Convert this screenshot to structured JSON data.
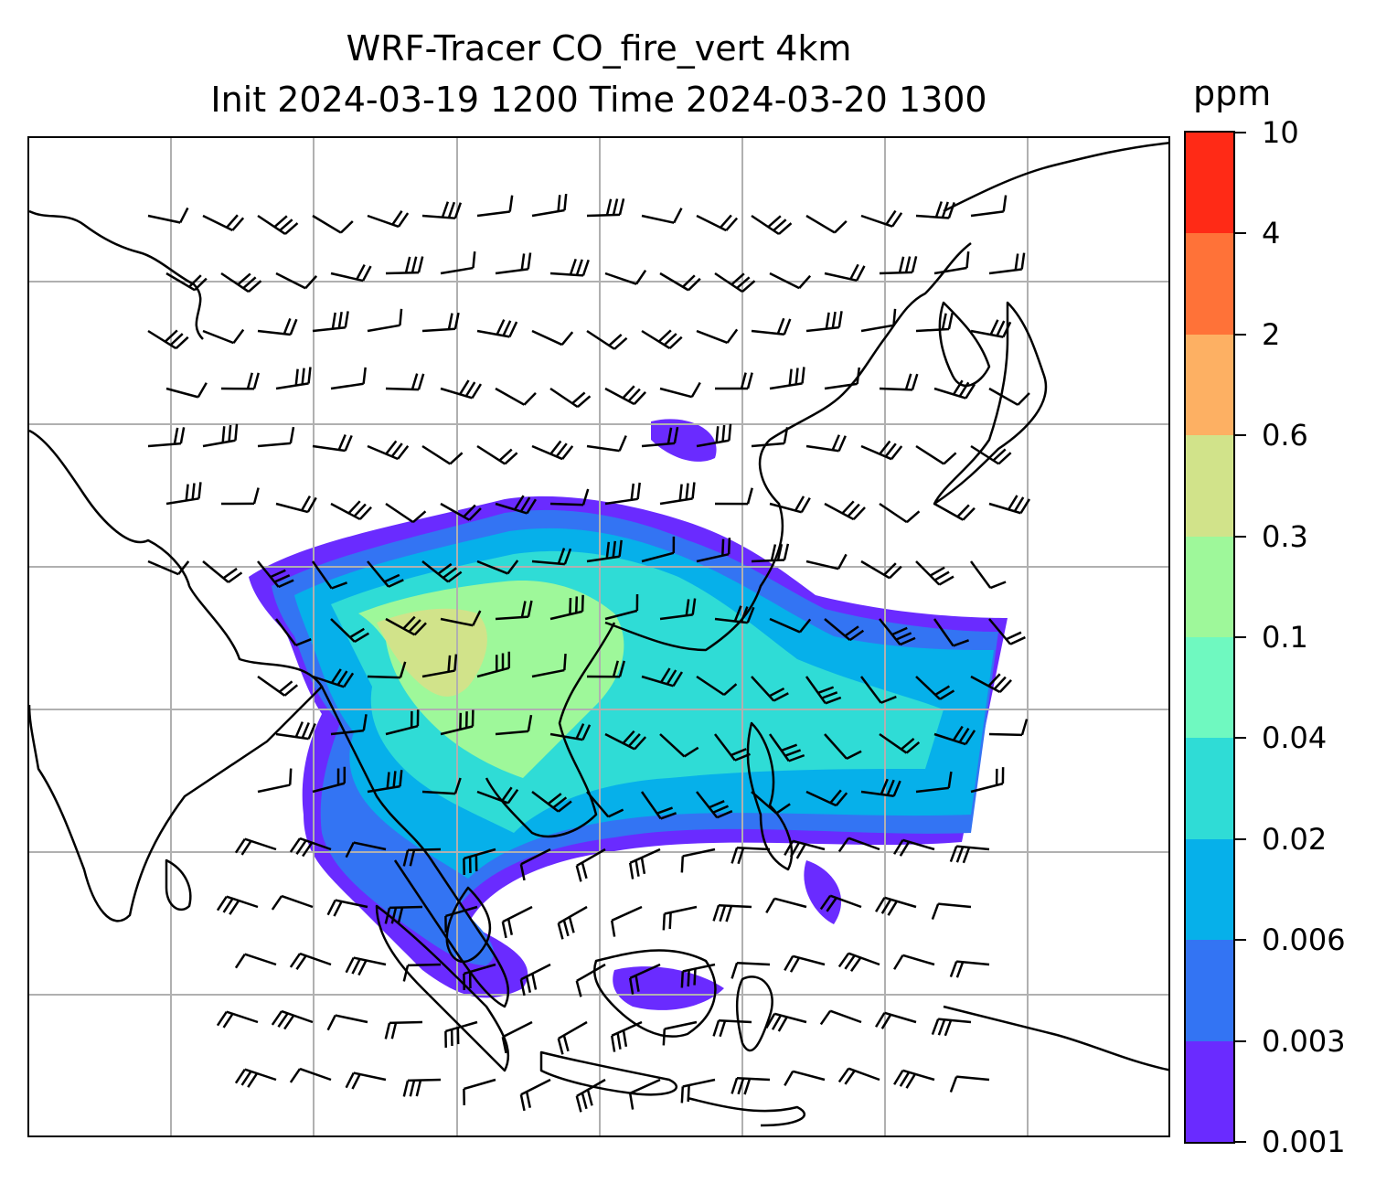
{
  "title": {
    "line1": "WRF-Tracer CO_fire_vert 4km",
    "line2": "Init 2024-03-19 1200 Time 2024-03-20 1300"
  },
  "colorbar": {
    "unit": "ppm",
    "tick_labels": [
      "0.001",
      "0.003",
      "0.006",
      "0.02",
      "0.04",
      "0.1",
      "0.3",
      "0.6",
      "2",
      "4",
      "10"
    ],
    "colors": [
      "#6a2bff",
      "#3374f3",
      "#06b0ea",
      "#2fdcd6",
      "#6ff9c0",
      "#9ef89a",
      "#d1e38a",
      "#fdb063",
      "#ff7238",
      "#ff2a16"
    ]
  },
  "map": {
    "gridlines": true,
    "grid_color": "#b0b0b0",
    "coastline_color": "#000000",
    "plume_colors": [
      "#6a2bff",
      "#3374f3",
      "#06b0ea",
      "#2fdcd6",
      "#9ef89a",
      "#d1e38a"
    ],
    "overlay": "wind barbs",
    "region": "South and East Asia"
  }
}
